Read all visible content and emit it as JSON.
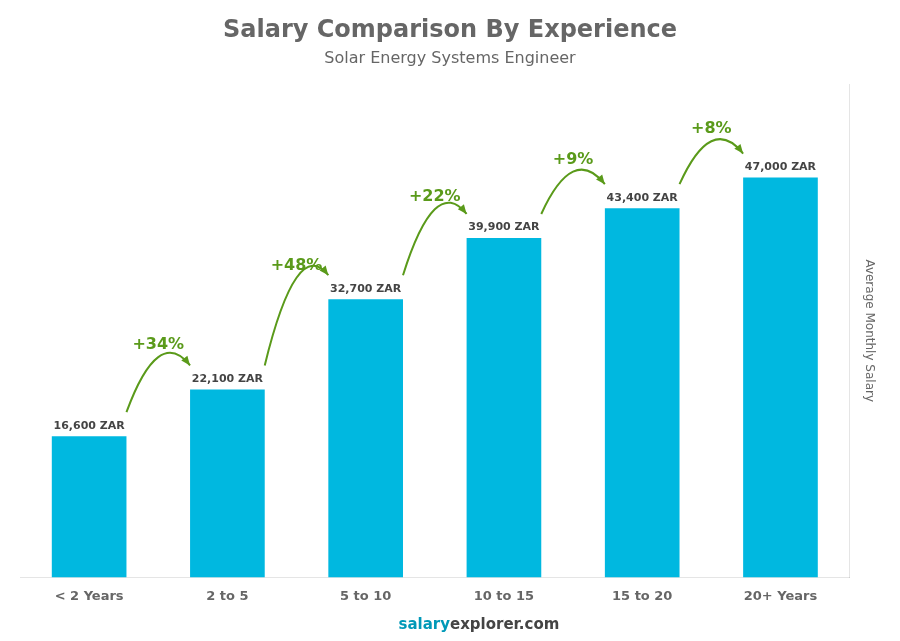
{
  "chart_data": {
    "type": "bar",
    "title": "Salary Comparison By Experience",
    "subtitle": "Solar Energy Systems Engineer",
    "ylabel": "Average Monthly Salary",
    "categories": [
      "< 2 Years",
      "2 to 5",
      "5 to 10",
      "10 to 15",
      "15 to 20",
      "20+ Years"
    ],
    "values": [
      16600,
      22100,
      32700,
      39900,
      43400,
      47000
    ],
    "value_labels": [
      "16,600 ZAR",
      "22,100 ZAR",
      "32,700 ZAR",
      "39,900 ZAR",
      "43,400 ZAR",
      "47,000 ZAR"
    ],
    "data_labels": true,
    "annotations": [
      "+34%",
      "+48%",
      "+22%",
      "+9%",
      "+8%"
    ],
    "footer": [
      "salary",
      "explorer.com"
    ],
    "color": "#00b8e0",
    "ylim": [
      0,
      58000
    ],
    "yticks": [],
    "tick_labels": "x",
    "grid": false
  }
}
